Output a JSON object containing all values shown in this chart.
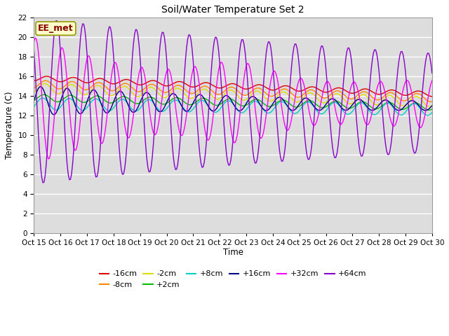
{
  "title": "Soil/Water Temperature Set 2",
  "xlabel": "Time",
  "ylabel": "Temperature (C)",
  "ylim": [
    0,
    22
  ],
  "yticks": [
    0,
    2,
    4,
    6,
    8,
    10,
    12,
    14,
    16,
    18,
    20,
    22
  ],
  "x_tick_labels": [
    "Oct 15",
    "Oct 16",
    "Oct 17",
    "Oct 18",
    "Oct 19",
    "Oct 20",
    "Oct 21",
    "Oct 22",
    "Oct 23",
    "Oct 24",
    "Oct 25",
    "Oct 26",
    "Oct 27",
    "Oct 28",
    "Oct 29",
    "Oct 30"
  ],
  "annotation": "EE_met",
  "annotation_color": "#880000",
  "annotation_bg": "#ffffcc",
  "annotation_edge": "#999900",
  "fig_bg": "#ffffff",
  "plot_bg": "#dddddd",
  "grid_color": "#ffffff",
  "colors": {
    "-16cm": "#dd0000",
    "-8cm": "#ff8800",
    "-2cm": "#dddd00",
    "+2cm": "#00bb00",
    "+8cm": "#00cccc",
    "+16cm": "#000088",
    "+32cm": "#ff00ff",
    "+64cm": "#8800cc"
  }
}
